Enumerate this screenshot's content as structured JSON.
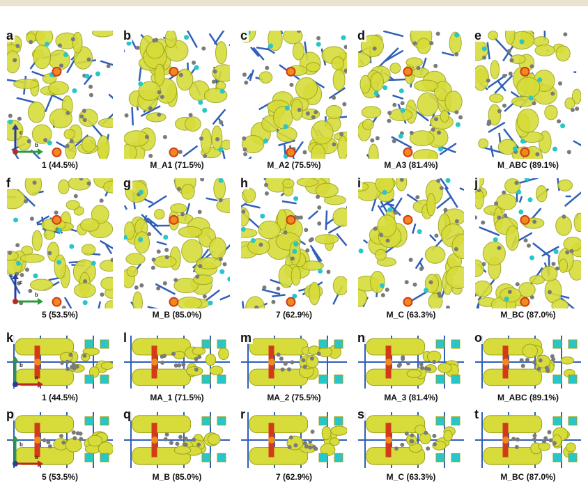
{
  "colors": {
    "isosurface": "#d7dc3a",
    "isosurface_dark": "#9aa21e",
    "carbon": "#7a7a7a",
    "bond_blue": "#2f5fb8",
    "nitrogen_cyan": "#26c6c9",
    "oxygen_red": "#d23a1a",
    "metal_orange": "#f08a1c",
    "axis_c": "#2a3d9a",
    "axis_b": "#2e9a3a",
    "axis_a": "#c0281e"
  },
  "axes": {
    "c": "c",
    "b": "b",
    "a": "a"
  },
  "rows": [
    {
      "panels": [
        {
          "letter": "a",
          "caption": "1 (44.5%)",
          "axes": "cb"
        },
        {
          "letter": "b",
          "caption": "M_A1 (71.5%)"
        },
        {
          "letter": "c",
          "caption": "M_A2 (75.5%)"
        },
        {
          "letter": "d",
          "caption": "M_A3 (81.4%)"
        },
        {
          "letter": "e",
          "caption": "M_ABC (89.1%)"
        }
      ]
    },
    {
      "panels": [
        {
          "letter": "f",
          "caption": "5 (53.5%)",
          "axes": "cb"
        },
        {
          "letter": "g",
          "caption": "M_B (85.0%)"
        },
        {
          "letter": "h",
          "caption": "7 (62.9%)"
        },
        {
          "letter": "i",
          "caption": "M_C (63.3%)"
        },
        {
          "letter": "j",
          "caption": "M_BC (87.0%)"
        }
      ]
    },
    {
      "panels": [
        {
          "letter": "k",
          "caption": "1 (44.5%)",
          "axes": "ba"
        },
        {
          "letter": "l",
          "caption": "MA_1 (71.5%)"
        },
        {
          "letter": "m",
          "caption": "MA_2 (75.5%)"
        },
        {
          "letter": "n",
          "caption": "MA_3 (81.4%)"
        },
        {
          "letter": "o",
          "caption": "M_ABC (89.1%)"
        }
      ]
    },
    {
      "panels": [
        {
          "letter": "p",
          "caption": "5 (53.5%)",
          "axes": "ba"
        },
        {
          "letter": "q",
          "caption": "M_B (85.0%)"
        },
        {
          "letter": "r",
          "caption": "7 (62.9%)"
        },
        {
          "letter": "s",
          "caption": "M_C (63.3%)"
        },
        {
          "letter": "t",
          "caption": "M_BC (87.0%)"
        }
      ]
    }
  ]
}
